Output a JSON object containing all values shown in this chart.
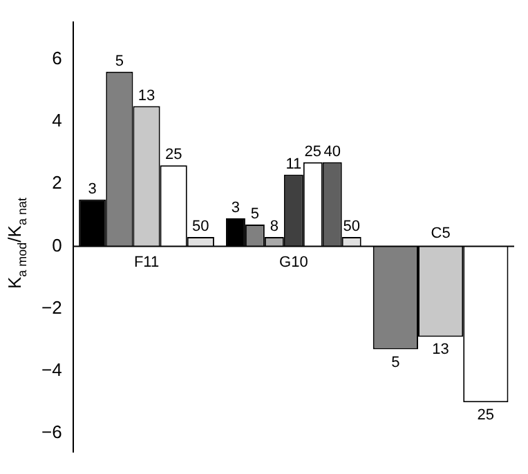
{
  "chart_data": {
    "type": "bar",
    "ylabel": "K$_{a mod}$/K$_{a nat}$",
    "categories": [
      "F11",
      "G10",
      "C5"
    ],
    "series": [
      {
        "name": "3",
        "color": "#000000",
        "values": [
          1.5,
          0.9,
          null
        ]
      },
      {
        "name": "5",
        "color": "#808080",
        "values": [
          5.6,
          0.7,
          -3.3
        ]
      },
      {
        "name": "8",
        "color": "#a8a8a8",
        "values": [
          null,
          0.3,
          null
        ]
      },
      {
        "name": "11",
        "color": "#404040",
        "values": [
          null,
          2.3,
          null
        ]
      },
      {
        "name": "13",
        "color": "#c8c8c8",
        "values": [
          4.5,
          null,
          -2.9
        ]
      },
      {
        "name": "25",
        "color": "#ffffff",
        "values": [
          2.6,
          2.7,
          -5.0
        ]
      },
      {
        "name": "40",
        "color": "#606060",
        "values": [
          null,
          2.7,
          null
        ]
      },
      {
        "name": "50",
        "color": "#e0e0e0",
        "values": [
          0.3,
          0.3,
          null
        ]
      }
    ],
    "ylim": [
      -6.6,
      7.2
    ],
    "yticks": [
      {
        "value": -6,
        "label": "−6"
      },
      {
        "value": -4,
        "label": "−4"
      },
      {
        "value": -2,
        "label": "−2"
      },
      0,
      2,
      4,
      6
    ],
    "grid": false,
    "legend": false
  }
}
